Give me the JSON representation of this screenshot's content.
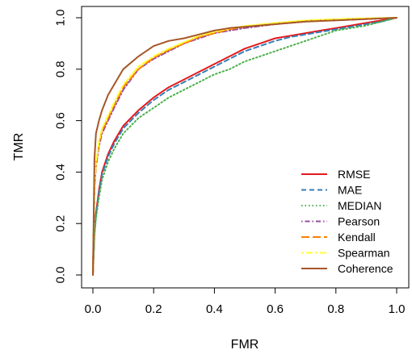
{
  "chart_data": {
    "type": "line",
    "xlabel": "FMR",
    "ylabel": "TMR",
    "xlim": [
      0,
      1
    ],
    "ylim": [
      0,
      1
    ],
    "xticks": [
      "0.0",
      "0.2",
      "0.4",
      "0.6",
      "0.8",
      "1.0"
    ],
    "yticks": [
      "0.0",
      "0.2",
      "0.4",
      "0.6",
      "0.8",
      "1.0"
    ],
    "grid": false,
    "legend_position": "bottom-right",
    "series": [
      {
        "name": "RMSE",
        "color": "#e41a1c",
        "dash": "solid",
        "x": [
          0,
          0.005,
          0.01,
          0.02,
          0.03,
          0.05,
          0.07,
          0.1,
          0.15,
          0.2,
          0.25,
          0.3,
          0.35,
          0.4,
          0.45,
          0.5,
          0.55,
          0.6,
          0.65,
          0.7,
          0.75,
          0.8,
          0.85,
          0.9,
          0.95,
          1.0
        ],
        "y": [
          0,
          0.17,
          0.24,
          0.33,
          0.4,
          0.47,
          0.52,
          0.58,
          0.64,
          0.69,
          0.73,
          0.76,
          0.79,
          0.82,
          0.85,
          0.88,
          0.9,
          0.92,
          0.93,
          0.94,
          0.95,
          0.96,
          0.97,
          0.98,
          0.99,
          1.0
        ]
      },
      {
        "name": "MAE",
        "color": "#377eb8",
        "dash": "dashed",
        "x": [
          0,
          0.005,
          0.01,
          0.02,
          0.03,
          0.05,
          0.07,
          0.1,
          0.15,
          0.2,
          0.25,
          0.3,
          0.35,
          0.4,
          0.45,
          0.5,
          0.55,
          0.6,
          0.65,
          0.7,
          0.75,
          0.8,
          0.85,
          0.9,
          0.95,
          1.0
        ],
        "y": [
          0,
          0.16,
          0.23,
          0.32,
          0.39,
          0.46,
          0.51,
          0.57,
          0.63,
          0.68,
          0.72,
          0.75,
          0.78,
          0.81,
          0.84,
          0.87,
          0.89,
          0.91,
          0.925,
          0.935,
          0.945,
          0.955,
          0.965,
          0.975,
          0.985,
          1.0
        ]
      },
      {
        "name": "MEDIAN",
        "color": "#4daf4a",
        "dash": "dotted",
        "x": [
          0,
          0.005,
          0.01,
          0.02,
          0.03,
          0.05,
          0.07,
          0.1,
          0.15,
          0.2,
          0.25,
          0.3,
          0.35,
          0.4,
          0.45,
          0.5,
          0.55,
          0.6,
          0.65,
          0.7,
          0.75,
          0.8,
          0.85,
          0.9,
          0.95,
          1.0
        ],
        "y": [
          0,
          0.15,
          0.22,
          0.3,
          0.37,
          0.44,
          0.49,
          0.55,
          0.61,
          0.65,
          0.69,
          0.72,
          0.75,
          0.78,
          0.8,
          0.83,
          0.85,
          0.87,
          0.89,
          0.91,
          0.93,
          0.95,
          0.96,
          0.97,
          0.985,
          1.0
        ]
      },
      {
        "name": "Pearson",
        "color": "#984ea3",
        "dash": "dotdash",
        "x": [
          0,
          0.005,
          0.01,
          0.02,
          0.03,
          0.05,
          0.07,
          0.1,
          0.15,
          0.2,
          0.25,
          0.3,
          0.35,
          0.4,
          0.45,
          0.5,
          0.6,
          0.7,
          0.8,
          0.9,
          1.0
        ],
        "y": [
          0,
          0.33,
          0.42,
          0.5,
          0.55,
          0.6,
          0.65,
          0.72,
          0.8,
          0.84,
          0.87,
          0.9,
          0.92,
          0.94,
          0.95,
          0.96,
          0.975,
          0.985,
          0.99,
          0.995,
          1.0
        ]
      },
      {
        "name": "Kendall",
        "color": "#ff7f00",
        "dash": "longdash",
        "x": [
          0,
          0.005,
          0.01,
          0.02,
          0.03,
          0.05,
          0.07,
          0.1,
          0.15,
          0.2,
          0.25,
          0.3,
          0.35,
          0.4,
          0.45,
          0.5,
          0.6,
          0.7,
          0.8,
          0.9,
          1.0
        ],
        "y": [
          0,
          0.34,
          0.43,
          0.51,
          0.56,
          0.61,
          0.66,
          0.73,
          0.8,
          0.845,
          0.875,
          0.9,
          0.925,
          0.94,
          0.955,
          0.965,
          0.978,
          0.988,
          0.993,
          0.997,
          1.0
        ]
      },
      {
        "name": "Spearman",
        "color": "#ffff33",
        "dash": "twodash",
        "x": [
          0,
          0.005,
          0.01,
          0.02,
          0.03,
          0.05,
          0.07,
          0.1,
          0.15,
          0.2,
          0.25,
          0.3,
          0.35,
          0.4,
          0.45,
          0.5,
          0.6,
          0.7,
          0.8,
          0.9,
          1.0
        ],
        "y": [
          0,
          0.35,
          0.44,
          0.52,
          0.57,
          0.62,
          0.67,
          0.74,
          0.81,
          0.85,
          0.88,
          0.905,
          0.93,
          0.945,
          0.958,
          0.968,
          0.98,
          0.99,
          0.995,
          0.998,
          1.0
        ]
      },
      {
        "name": "Coherence",
        "color": "#a65628",
        "dash": "solid",
        "x": [
          0,
          0.005,
          0.01,
          0.02,
          0.03,
          0.05,
          0.07,
          0.1,
          0.15,
          0.2,
          0.25,
          0.3,
          0.35,
          0.4,
          0.45,
          0.5,
          0.6,
          0.7,
          0.8,
          0.9,
          1.0
        ],
        "y": [
          0,
          0.45,
          0.55,
          0.6,
          0.64,
          0.7,
          0.74,
          0.8,
          0.85,
          0.89,
          0.91,
          0.92,
          0.935,
          0.95,
          0.96,
          0.965,
          0.975,
          0.985,
          0.99,
          0.995,
          1.0
        ]
      }
    ]
  }
}
